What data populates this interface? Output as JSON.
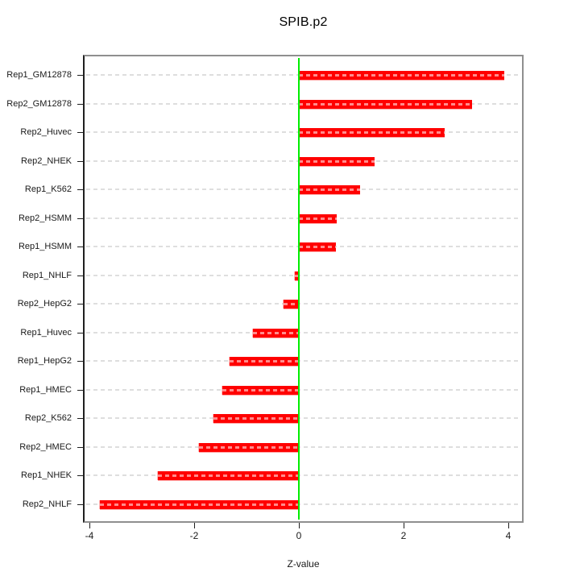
{
  "title": "SPIB.p2",
  "chart_data": {
    "type": "bar",
    "orientation": "horizontal",
    "title": "SPIB.p2",
    "xlabel": "Z-value",
    "xlim": [
      -4.2,
      4.2
    ],
    "xticks": [
      -4,
      -2,
      0,
      2,
      4
    ],
    "xtick_labels": [
      "-4",
      "-2",
      "0",
      "2",
      "4"
    ],
    "grid": true,
    "zero_line": 0,
    "categories": [
      "Rep1_GM12878",
      "Rep2_GM12878",
      "Rep2_Huvec",
      "Rep2_NHEK",
      "Rep1_K562",
      "Rep2_HSMM",
      "Rep1_HSMM",
      "Rep1_NHLF",
      "Rep2_HepG2",
      "Rep1_Huvec",
      "Rep1_HepG2",
      "Rep1_HMEC",
      "Rep2_K562",
      "Rep2_HMEC",
      "Rep1_NHEK",
      "Rep2_NHLF"
    ],
    "values": [
      3.93,
      3.3,
      2.78,
      1.45,
      1.17,
      0.72,
      0.71,
      -0.08,
      -0.3,
      -0.88,
      -1.33,
      -1.46,
      -1.63,
      -1.91,
      -2.7,
      -3.8
    ],
    "colors": {
      "bar": "#ff0000",
      "zero_line": "#00ee00",
      "grid": "#dedede",
      "box_border": "#8f8f8f",
      "axis": "#1f1f1f"
    }
  }
}
